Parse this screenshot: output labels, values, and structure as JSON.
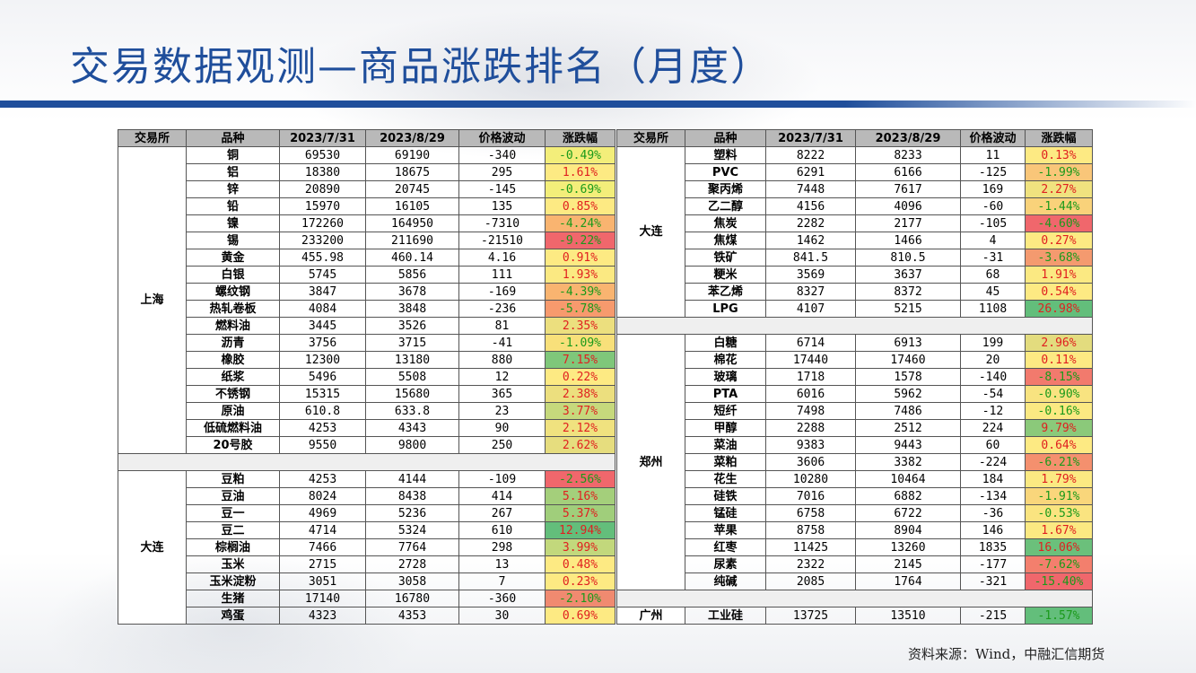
{
  "title": "交易数据观测—商品涨跌排名（月度）",
  "source": "资料来源：Wind，中融汇信期货",
  "headers": [
    "交易所",
    "品种",
    "2023/7/31",
    "2023/8/29",
    "价格波动",
    "涨跌幅"
  ],
  "left_groups": [
    {
      "exchange": "上海",
      "rows": [
        {
          "name": "铜",
          "v1": "69530",
          "v2": "69190",
          "chg": "-340",
          "pct": "-0.49%",
          "bg": "#f3ee7a",
          "fg": "#1a9a1a"
        },
        {
          "name": "铝",
          "v1": "18380",
          "v2": "18675",
          "chg": "295",
          "pct": "1.61%",
          "bg": "#fdea83",
          "fg": "#e02020"
        },
        {
          "name": "锌",
          "v1": "20890",
          "v2": "20745",
          "chg": "-145",
          "pct": "-0.69%",
          "bg": "#f3ee7a",
          "fg": "#1a9a1a"
        },
        {
          "name": "铅",
          "v1": "15970",
          "v2": "16105",
          "chg": "135",
          "pct": "0.85%",
          "bg": "#fdea83",
          "fg": "#e02020"
        },
        {
          "name": "镍",
          "v1": "172260",
          "v2": "164950",
          "chg": "-7310",
          "pct": "-4.24%",
          "bg": "#f9b470",
          "fg": "#1a9a1a"
        },
        {
          "name": "锡",
          "v1": "233200",
          "v2": "211690",
          "chg": "-21510",
          "pct": "-9.22%",
          "bg": "#f0676c",
          "fg": "#1a9a1a"
        },
        {
          "name": "黄金",
          "v1": "455.98",
          "v2": "460.14",
          "chg": "4.16",
          "pct": "0.91%",
          "bg": "#fdea83",
          "fg": "#e02020"
        },
        {
          "name": "白银",
          "v1": "5745",
          "v2": "5856",
          "chg": "111",
          "pct": "1.93%",
          "bg": "#fbe982",
          "fg": "#e02020"
        },
        {
          "name": "螺纹钢",
          "v1": "3847",
          "v2": "3678",
          "chg": "-169",
          "pct": "-4.39%",
          "bg": "#f9b470",
          "fg": "#1a9a1a"
        },
        {
          "name": "热轧卷板",
          "v1": "4084",
          "v2": "3848",
          "chg": "-236",
          "pct": "-5.78%",
          "bg": "#f79a6d",
          "fg": "#1a9a1a"
        },
        {
          "name": "燃料油",
          "v1": "3445",
          "v2": "3526",
          "chg": "81",
          "pct": "2.35%",
          "bg": "#ecdf7e",
          "fg": "#e02020"
        },
        {
          "name": "沥青",
          "v1": "3756",
          "v2": "3715",
          "chg": "-41",
          "pct": "-1.09%",
          "bg": "#f8e07a",
          "fg": "#1a9a1a"
        },
        {
          "name": "橡胶",
          "v1": "12300",
          "v2": "13180",
          "chg": "880",
          "pct": "7.15%",
          "bg": "#7fc77a",
          "fg": "#e02020"
        },
        {
          "name": "纸浆",
          "v1": "5496",
          "v2": "5508",
          "chg": "12",
          "pct": "0.22%",
          "bg": "#fdea83",
          "fg": "#e02020"
        },
        {
          "name": "不锈钢",
          "v1": "15315",
          "v2": "15680",
          "chg": "365",
          "pct": "2.38%",
          "bg": "#ecdf7e",
          "fg": "#e02020"
        },
        {
          "name": "原油",
          "v1": "610.8",
          "v2": "633.8",
          "chg": "23",
          "pct": "3.77%",
          "bg": "#c6d97c",
          "fg": "#e02020"
        },
        {
          "name": "低硫燃料油",
          "v1": "4253",
          "v2": "4343",
          "chg": "90",
          "pct": "2.12%",
          "bg": "#f0e27f",
          "fg": "#e02020"
        },
        {
          "name": "20号胶",
          "v1": "9550",
          "v2": "9800",
          "chg": "250",
          "pct": "2.62%",
          "bg": "#e6dd7e",
          "fg": "#e02020"
        }
      ]
    },
    {
      "exchange": "大连",
      "rows": [
        {
          "name": "豆粕",
          "v1": "4253",
          "v2": "4144",
          "chg": "-109",
          "pct": "-2.56%",
          "bg": "#f0676c",
          "fg": "#1a9a1a"
        },
        {
          "name": "豆油",
          "v1": "8024",
          "v2": "8438",
          "chg": "414",
          "pct": "5.16%",
          "bg": "#a4cf7b",
          "fg": "#e02020"
        },
        {
          "name": "豆一",
          "v1": "4969",
          "v2": "5236",
          "chg": "267",
          "pct": "5.37%",
          "bg": "#a0ce7b",
          "fg": "#e02020"
        },
        {
          "name": "豆二",
          "v1": "4714",
          "v2": "5324",
          "chg": "610",
          "pct": "12.94%",
          "bg": "#63be7b",
          "fg": "#e02020"
        },
        {
          "name": "棕榈油",
          "v1": "7466",
          "v2": "7764",
          "chg": "298",
          "pct": "3.99%",
          "bg": "#c2d87c",
          "fg": "#e02020"
        },
        {
          "name": "玉米",
          "v1": "2715",
          "v2": "2728",
          "chg": "13",
          "pct": "0.48%",
          "bg": "#fdea83",
          "fg": "#e02020"
        },
        {
          "name": "玉米淀粉",
          "v1": "3051",
          "v2": "3058",
          "chg": "7",
          "pct": "0.23%",
          "bg": "#fdea83",
          "fg": "#e02020"
        },
        {
          "name": "生猪",
          "v1": "17140",
          "v2": "16780",
          "chg": "-360",
          "pct": "-2.10%",
          "bg": "#f08a70",
          "fg": "#1a9a1a"
        },
        {
          "name": "鸡蛋",
          "v1": "4323",
          "v2": "4353",
          "chg": "30",
          "pct": "0.69%",
          "bg": "#fdea83",
          "fg": "#e02020"
        }
      ]
    }
  ],
  "right_groups": [
    {
      "exchange": "大连",
      "rows": [
        {
          "name": "塑料",
          "v1": "8222",
          "v2": "8233",
          "chg": "11",
          "pct": "0.13%",
          "bg": "#fdea83",
          "fg": "#e02020"
        },
        {
          "name": "PVC",
          "v1": "6291",
          "v2": "6166",
          "chg": "-125",
          "pct": "-1.99%",
          "bg": "#f9c679",
          "fg": "#1a9a1a"
        },
        {
          "name": "聚丙烯",
          "v1": "7448",
          "v2": "7617",
          "chg": "169",
          "pct": "2.27%",
          "bg": "#f0e27f",
          "fg": "#e02020"
        },
        {
          "name": "乙二醇",
          "v1": "4156",
          "v2": "4096",
          "chg": "-60",
          "pct": "-1.44%",
          "bg": "#f9d27a",
          "fg": "#1a9a1a"
        },
        {
          "name": "焦炭",
          "v1": "2282",
          "v2": "2177",
          "chg": "-105",
          "pct": "-4.60%",
          "bg": "#f0676c",
          "fg": "#1a9a1a"
        },
        {
          "name": "焦煤",
          "v1": "1462",
          "v2": "1466",
          "chg": "4",
          "pct": "0.27%",
          "bg": "#fdea83",
          "fg": "#e02020"
        },
        {
          "name": "铁矿",
          "v1": "841.5",
          "v2": "810.5",
          "chg": "-31",
          "pct": "-3.68%",
          "bg": "#f49a6f",
          "fg": "#1a9a1a"
        },
        {
          "name": "粳米",
          "v1": "3569",
          "v2": "3637",
          "chg": "68",
          "pct": "1.91%",
          "bg": "#fbe982",
          "fg": "#e02020"
        },
        {
          "name": "苯乙烯",
          "v1": "8327",
          "v2": "8372",
          "chg": "45",
          "pct": "0.54%",
          "bg": "#fdea83",
          "fg": "#e02020"
        },
        {
          "name": "LPG",
          "v1": "4107",
          "v2": "5215",
          "chg": "1108",
          "pct": "26.98%",
          "bg": "#63be7b",
          "fg": "#e02020"
        }
      ]
    },
    {
      "exchange": "郑州",
      "rows": [
        {
          "name": "白糖",
          "v1": "6714",
          "v2": "6913",
          "chg": "199",
          "pct": "2.96%",
          "bg": "#e3dc7e",
          "fg": "#e02020"
        },
        {
          "name": "棉花",
          "v1": "17440",
          "v2": "17460",
          "chg": "20",
          "pct": "0.11%",
          "bg": "#fdea83",
          "fg": "#e02020"
        },
        {
          "name": "玻璃",
          "v1": "1718",
          "v2": "1578",
          "chg": "-140",
          "pct": "-8.15%",
          "bg": "#f27a6d",
          "fg": "#1a9a1a"
        },
        {
          "name": "PTA",
          "v1": "6016",
          "v2": "5962",
          "chg": "-54",
          "pct": "-0.90%",
          "bg": "#f8e380",
          "fg": "#1a9a1a"
        },
        {
          "name": "短纤",
          "v1": "7498",
          "v2": "7486",
          "chg": "-12",
          "pct": "-0.16%",
          "bg": "#fbe982",
          "fg": "#1a9a1a"
        },
        {
          "name": "甲醇",
          "v1": "2288",
          "v2": "2512",
          "chg": "224",
          "pct": "9.79%",
          "bg": "#8bc97a",
          "fg": "#e02020"
        },
        {
          "name": "菜油",
          "v1": "9383",
          "v2": "9443",
          "chg": "60",
          "pct": "0.64%",
          "bg": "#fdea83",
          "fg": "#e02020"
        },
        {
          "name": "菜粕",
          "v1": "3606",
          "v2": "3382",
          "chg": "-224",
          "pct": "-6.21%",
          "bg": "#f4906e",
          "fg": "#1a9a1a"
        },
        {
          "name": "花生",
          "v1": "10280",
          "v2": "10464",
          "chg": "184",
          "pct": "1.79%",
          "bg": "#fbe982",
          "fg": "#e02020"
        },
        {
          "name": "硅铁",
          "v1": "7016",
          "v2": "6882",
          "chg": "-134",
          "pct": "-1.91%",
          "bg": "#f9d67b",
          "fg": "#1a9a1a"
        },
        {
          "name": "锰硅",
          "v1": "6758",
          "v2": "6722",
          "chg": "-36",
          "pct": "-0.53%",
          "bg": "#fae480",
          "fg": "#1a9a1a"
        },
        {
          "name": "苹果",
          "v1": "8758",
          "v2": "8904",
          "chg": "146",
          "pct": "1.67%",
          "bg": "#fbe982",
          "fg": "#e02020"
        },
        {
          "name": "红枣",
          "v1": "11425",
          "v2": "13260",
          "chg": "1835",
          "pct": "16.06%",
          "bg": "#6bc07b",
          "fg": "#e02020"
        },
        {
          "name": "尿素",
          "v1": "2322",
          "v2": "2145",
          "chg": "-177",
          "pct": "-7.62%",
          "bg": "#f37f6d",
          "fg": "#1a9a1a"
        },
        {
          "name": "纯碱",
          "v1": "2085",
          "v2": "1764",
          "chg": "-321",
          "pct": "-15.40%",
          "bg": "#f0676c",
          "fg": "#1a9a1a"
        }
      ]
    },
    {
      "exchange": "广州",
      "rows": [
        {
          "name": "工业硅",
          "v1": "13725",
          "v2": "13510",
          "chg": "-215",
          "pct": "-1.57%",
          "bg": "#63be7b",
          "fg": "#1a9a1a"
        }
      ]
    }
  ]
}
